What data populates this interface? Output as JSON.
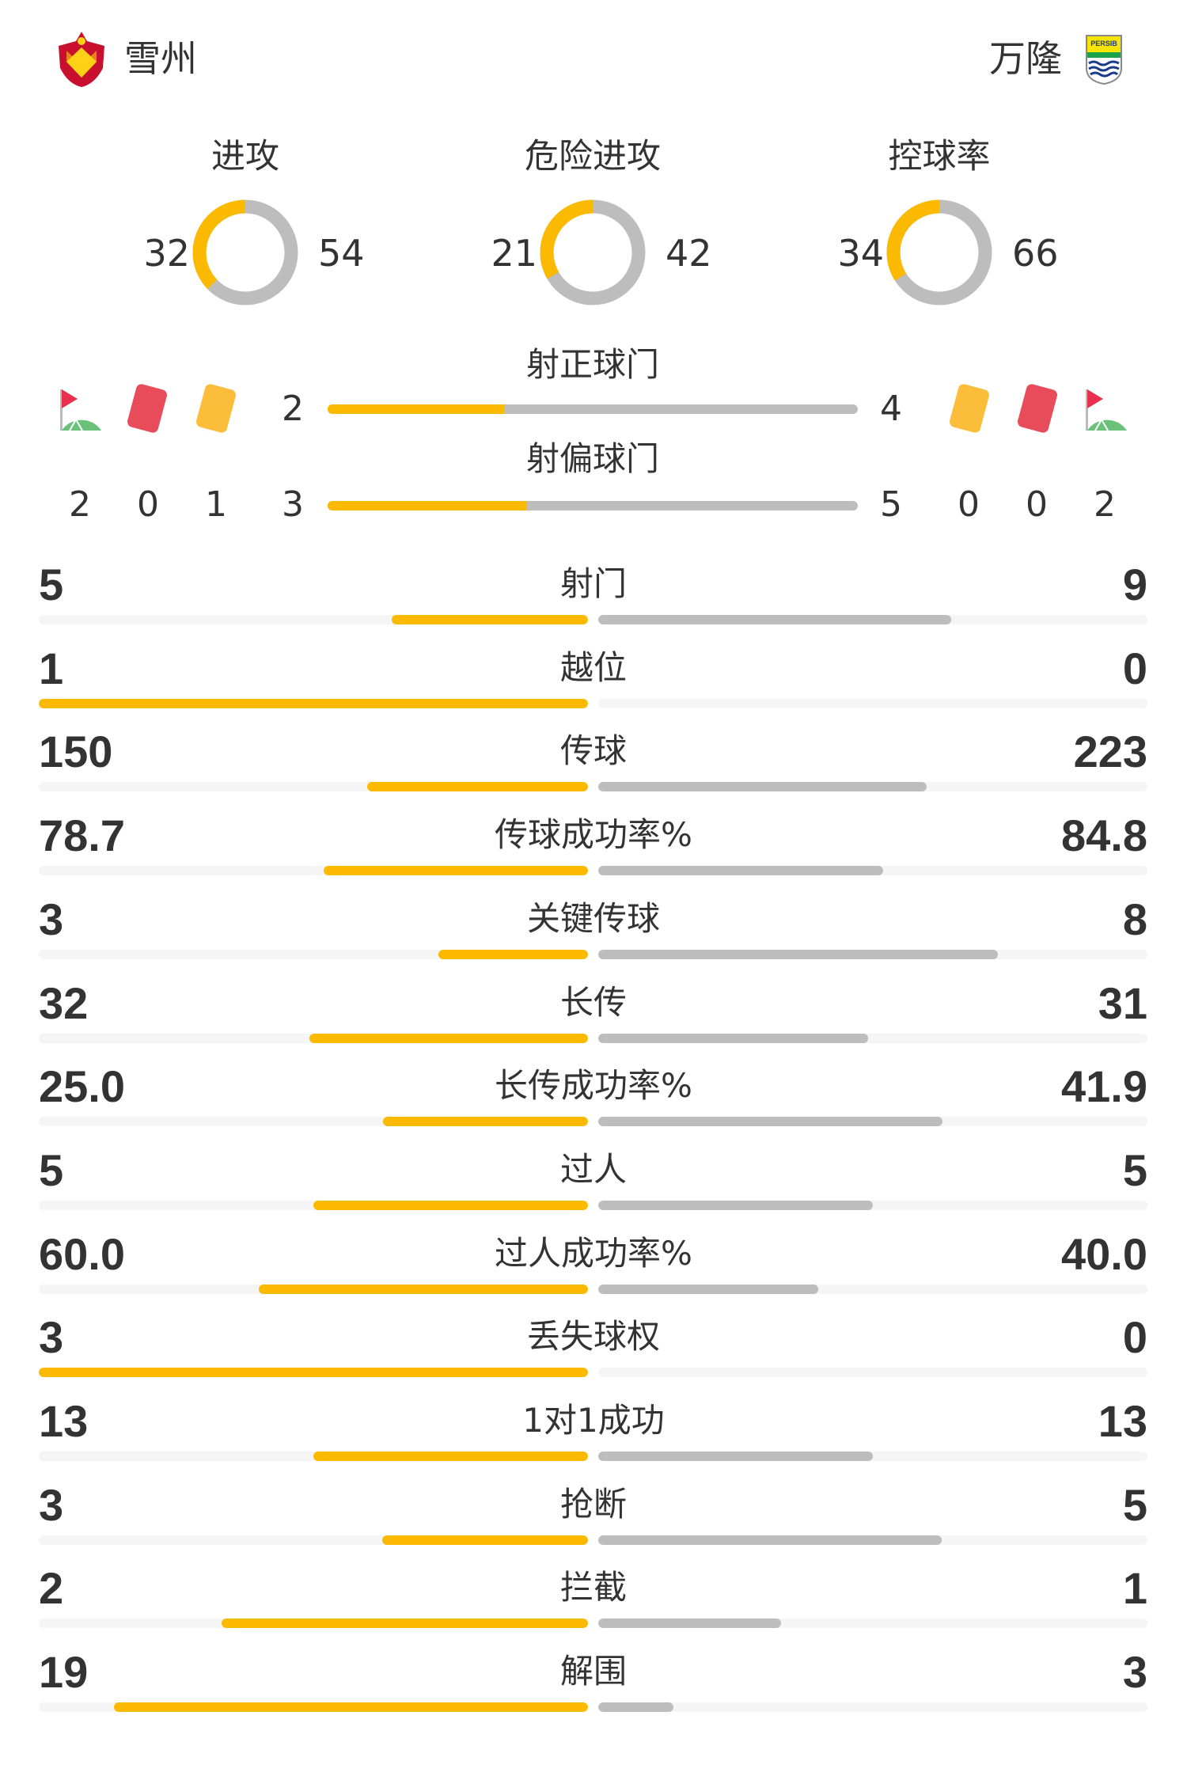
{
  "colors": {
    "home": "#FBBA00",
    "away": "#BDBDBD",
    "track": "#F5F5F5",
    "text": "#333333"
  },
  "home": {
    "name": "雪州",
    "logo": "selangor-crest"
  },
  "away": {
    "name": "万隆",
    "logo": "persib-crest",
    "logo_text": "PERSIB"
  },
  "donuts": [
    {
      "label": "进攻",
      "home": 32,
      "away": 54
    },
    {
      "label": "危险进攻",
      "home": 21,
      "away": 42
    },
    {
      "label": "控球率",
      "home": 34,
      "away": 66
    }
  ],
  "shots_on": {
    "label": "射正球门",
    "home": 2,
    "away": 4
  },
  "shots_off": {
    "label": "射偏球门",
    "home": 3,
    "away": 5
  },
  "discipline": {
    "home": {
      "corners": 2,
      "red": 0,
      "yellow": 1
    },
    "away": {
      "corners": 2,
      "red": 0,
      "yellow": 0
    }
  },
  "stats": [
    {
      "label": "射门",
      "home": "5",
      "away": "9"
    },
    {
      "label": "越位",
      "home": "1",
      "away": "0"
    },
    {
      "label": "传球",
      "home": "150",
      "away": "223"
    },
    {
      "label": "传球成功率%",
      "home": "78.7",
      "away": "84.8"
    },
    {
      "label": "关键传球",
      "home": "3",
      "away": "8"
    },
    {
      "label": "长传",
      "home": "32",
      "away": "31"
    },
    {
      "label": "长传成功率%",
      "home": "25.0",
      "away": "41.9"
    },
    {
      "label": "过人",
      "home": "5",
      "away": "5"
    },
    {
      "label": "过人成功率%",
      "home": "60.0",
      "away": "40.0"
    },
    {
      "label": "丢失球权",
      "home": "3",
      "away": "0"
    },
    {
      "label": "1对1成功",
      "home": "13",
      "away": "13"
    },
    {
      "label": "抢断",
      "home": "3",
      "away": "5"
    },
    {
      "label": "拦截",
      "home": "2",
      "away": "1"
    },
    {
      "label": "解围",
      "home": "19",
      "away": "3"
    }
  ]
}
